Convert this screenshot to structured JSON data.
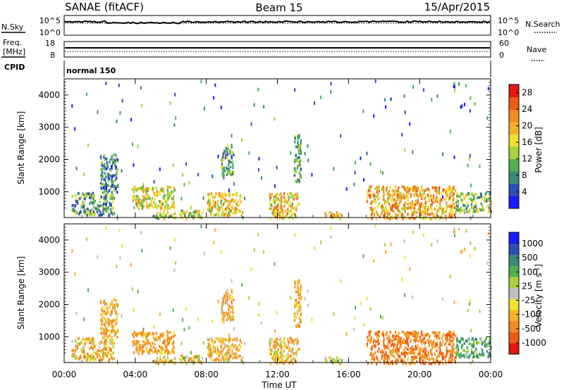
{
  "header": {
    "title": "SANAE (fitACF)",
    "beam": "Beam 15",
    "date": "15/Apr/2015"
  },
  "sky_panel": {
    "left_label": "N.Sky",
    "left_ticks": [
      "10^5",
      "10^0"
    ],
    "right_label": "N.Search",
    "right_ticks": [
      "10^5",
      "10^0"
    ]
  },
  "freq_panel": {
    "left_label_line1": "Freq.",
    "left_label_line2": "[MHz]",
    "left_ticks": [
      "18",
      "8"
    ],
    "right_label": "Nave",
    "right_ticks": [
      "60",
      "0"
    ]
  },
  "cpid_panel": {
    "label": "CPID",
    "mode": "normal 150"
  },
  "x_axis": {
    "label": "Time UT",
    "ticks": [
      "00:00",
      "04:00",
      "08:00",
      "12:00",
      "16:00",
      "20:00",
      "00:00"
    ]
  },
  "colors": {
    "power_scale": [
      "#1a1aff",
      "#2d4fb5",
      "#3a8a7a",
      "#4fb050",
      "#a6d23c",
      "#f2e030",
      "#f7b02a",
      "#f28a1e",
      "#ef5a14",
      "#e01a0e"
    ],
    "velocity_scale": [
      "#e01a0e",
      "#ef5a14",
      "#f28a1e",
      "#f7b02a",
      "#f2e030",
      "#c0c0c0",
      "#a6d23c",
      "#4fb050",
      "#3a8a7a",
      "#2d4fb5",
      "#1a1aff"
    ]
  },
  "chart_data": [
    {
      "type": "heatmap",
      "name": "power",
      "ylabel": "Slant Range [km]",
      "ylim": [
        200,
        4500
      ],
      "xlim_hours": [
        0,
        24
      ],
      "y_ticks": [
        "4000",
        "3000",
        "2000",
        "1000"
      ],
      "colorbar": {
        "label": "Power [dB]",
        "ticks": [
          "28",
          "24",
          "20",
          "16",
          "12",
          "8",
          "4"
        ],
        "range": [
          0,
          30
        ]
      },
      "regions": [
        {
          "t0": 0.4,
          "t1": 2.8,
          "r0": 300,
          "r1": 1000,
          "level": 10
        },
        {
          "t0": 2.0,
          "t1": 3.0,
          "r0": 1000,
          "r1": 2200,
          "level": 8
        },
        {
          "t0": 3.8,
          "t1": 6.2,
          "r0": 500,
          "r1": 1200,
          "level": 16
        },
        {
          "t0": 5.0,
          "t1": 7.8,
          "r0": 200,
          "r1": 450,
          "level": 14
        },
        {
          "t0": 8.0,
          "t1": 10.0,
          "r0": 300,
          "r1": 1000,
          "level": 18
        },
        {
          "t0": 8.8,
          "t1": 9.5,
          "r0": 1500,
          "r1": 2500,
          "level": 10
        },
        {
          "t0": 11.5,
          "t1": 13.2,
          "r0": 200,
          "r1": 1000,
          "level": 18
        },
        {
          "t0": 12.9,
          "t1": 13.3,
          "r0": 1200,
          "r1": 2800,
          "level": 10
        },
        {
          "t0": 14.6,
          "t1": 15.6,
          "r0": 200,
          "r1": 400,
          "level": 20
        },
        {
          "t0": 17.0,
          "t1": 22.0,
          "r0": 200,
          "r1": 1200,
          "level": 20
        },
        {
          "t0": 22.0,
          "t1": 24.0,
          "r0": 400,
          "r1": 1000,
          "level": 12
        }
      ]
    },
    {
      "type": "heatmap",
      "name": "velocity",
      "ylabel": "Slant Range [km]",
      "ylim": [
        200,
        4500
      ],
      "xlim_hours": [
        0,
        24
      ],
      "y_ticks": [
        "4000",
        "3000",
        "2000",
        "1000"
      ],
      "colorbar": {
        "label": "Velocity [m s^-1]",
        "ticks": [
          "1000",
          "500",
          "100",
          "25",
          "-25",
          "-100",
          "-500",
          "-1000"
        ],
        "range": [
          -1000,
          1000
        ]
      },
      "regions": [
        {
          "t0": 0.4,
          "t1": 2.8,
          "r0": 300,
          "r1": 1000,
          "level": -150
        },
        {
          "t0": 2.0,
          "t1": 3.0,
          "r0": 1000,
          "r1": 2200,
          "level": -200
        },
        {
          "t0": 3.8,
          "t1": 6.2,
          "r0": 500,
          "r1": 1200,
          "level": -250
        },
        {
          "t0": 5.0,
          "t1": 7.8,
          "r0": 200,
          "r1": 450,
          "level": -120
        },
        {
          "t0": 8.0,
          "t1": 10.0,
          "r0": 300,
          "r1": 1000,
          "level": -150
        },
        {
          "t0": 8.8,
          "t1": 9.5,
          "r0": 1500,
          "r1": 2500,
          "level": -200
        },
        {
          "t0": 11.5,
          "t1": 13.2,
          "r0": 200,
          "r1": 1000,
          "level": -150
        },
        {
          "t0": 12.9,
          "t1": 13.3,
          "r0": 1200,
          "r1": 2800,
          "level": -200
        },
        {
          "t0": 14.6,
          "t1": 15.6,
          "r0": 200,
          "r1": 400,
          "level": 0
        },
        {
          "t0": 17.0,
          "t1": 22.0,
          "r0": 200,
          "r1": 1200,
          "level": -400
        },
        {
          "t0": 22.0,
          "t1": 24.0,
          "r0": 400,
          "r1": 1000,
          "level": 200
        }
      ]
    }
  ]
}
